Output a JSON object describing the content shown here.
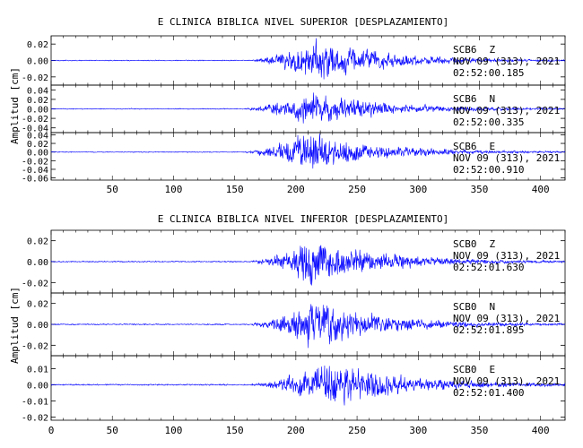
{
  "trace_color": "#0000ff",
  "axis_color": "#000000",
  "figures": [
    {
      "title": "E CLINICA BIBLICA NIVEL SUPERIOR [DESPLAZAMIENTO]",
      "ylabel": "Amplitud [cm]",
      "x_ticks": [
        "50",
        "100",
        "150",
        "200",
        "250",
        "300",
        "350",
        "400"
      ],
      "channels": [
        {
          "station": "SCB6",
          "component": "Z",
          "date": "NOV 09 (313), 2021",
          "time": "02:52:00.185",
          "y_ticks": [
            "0.02",
            "0.00",
            "-0.02"
          ],
          "ylim": [
            -0.03,
            0.03
          ]
        },
        {
          "station": "SCB6",
          "component": "N",
          "date": "NOV 09 (313), 2021",
          "time": "02:52:00.335",
          "y_ticks": [
            "0.04",
            "0.02",
            "0.00",
            "-0.02",
            "-0.04"
          ],
          "ylim": [
            -0.05,
            0.05
          ]
        },
        {
          "station": "SCB6",
          "component": "E",
          "date": "NOV 09 (313), 2021",
          "time": "02:52:00.910",
          "y_ticks": [
            "0.04",
            "0.02",
            "0.00",
            "-0.02",
            "-0.04",
            "-0.06"
          ],
          "ylim": [
            -0.065,
            0.045
          ]
        }
      ]
    },
    {
      "title": "E CLINICA BIBLICA NIVEL INFERIOR [DESPLAZAMIENTO]",
      "ylabel": "Amplitud [cm]",
      "x_ticks": [
        "0",
        "50",
        "100",
        "150",
        "200",
        "250",
        "300",
        "350",
        "400"
      ],
      "channels": [
        {
          "station": "SCB0",
          "component": "Z",
          "date": "NOV 09 (313), 2021",
          "time": "02:52:01.630",
          "y_ticks": [
            "0.02",
            "0.00",
            "-0.02"
          ],
          "ylim": [
            -0.03,
            0.03
          ]
        },
        {
          "station": "SCB0",
          "component": "N",
          "date": "NOV 09 (313), 2021",
          "time": "02:52:01.895",
          "y_ticks": [
            "0.02",
            "0.00",
            "-0.02"
          ],
          "ylim": [
            -0.03,
            0.03
          ]
        },
        {
          "station": "SCB0",
          "component": "E",
          "date": "NOV 09 (313), 2021",
          "time": "02:52:01.400",
          "y_ticks": [
            "0.01",
            "0.00",
            "-0.01",
            "-0.02"
          ],
          "ylim": [
            -0.022,
            0.018
          ]
        }
      ]
    }
  ],
  "chart_data": [
    {
      "type": "line",
      "title": "E CLINICA BIBLICA NIVEL SUPERIOR [DESPLAZAMIENTO]",
      "xlabel": "",
      "ylabel": "Amplitud [cm]",
      "xlim": [
        0,
        420
      ],
      "grid": false,
      "series": [
        {
          "name": "SCB6 Z",
          "ylim": [
            -0.03,
            0.03
          ],
          "onset_s": 160,
          "peak_time_s": 215,
          "peak_amplitude_cm": 0.03,
          "noise_cm": 0.0007
        },
        {
          "name": "SCB6 N",
          "ylim": [
            -0.05,
            0.05
          ],
          "onset_s": 155,
          "peak_time_s": 212,
          "peak_amplitude_cm": 0.045,
          "noise_cm": 0.0012
        },
        {
          "name": "SCB6 E",
          "ylim": [
            -0.065,
            0.045
          ],
          "onset_s": 155,
          "peak_time_s": 210,
          "peak_amplitude_cm": 0.055,
          "noise_cm": 0.0012
        }
      ]
    },
    {
      "type": "line",
      "title": "E CLINICA BIBLICA NIVEL INFERIOR [DESPLAZAMIENTO]",
      "xlabel": "",
      "ylabel": "Amplitud [cm]",
      "xlim": [
        0,
        420
      ],
      "grid": false,
      "series": [
        {
          "name": "SCB0 Z",
          "ylim": [
            -0.03,
            0.03
          ],
          "onset_s": 160,
          "peak_time_s": 213,
          "peak_amplitude_cm": 0.027,
          "noise_cm": 0.0007
        },
        {
          "name": "SCB0 N",
          "ylim": [
            -0.03,
            0.03
          ],
          "onset_s": 160,
          "peak_time_s": 215,
          "peak_amplitude_cm": 0.026,
          "noise_cm": 0.0007
        },
        {
          "name": "SCB0 E",
          "ylim": [
            -0.022,
            0.018
          ],
          "onset_s": 160,
          "peak_time_s": 230,
          "peak_amplitude_cm": 0.018,
          "noise_cm": 0.0005
        }
      ]
    }
  ]
}
